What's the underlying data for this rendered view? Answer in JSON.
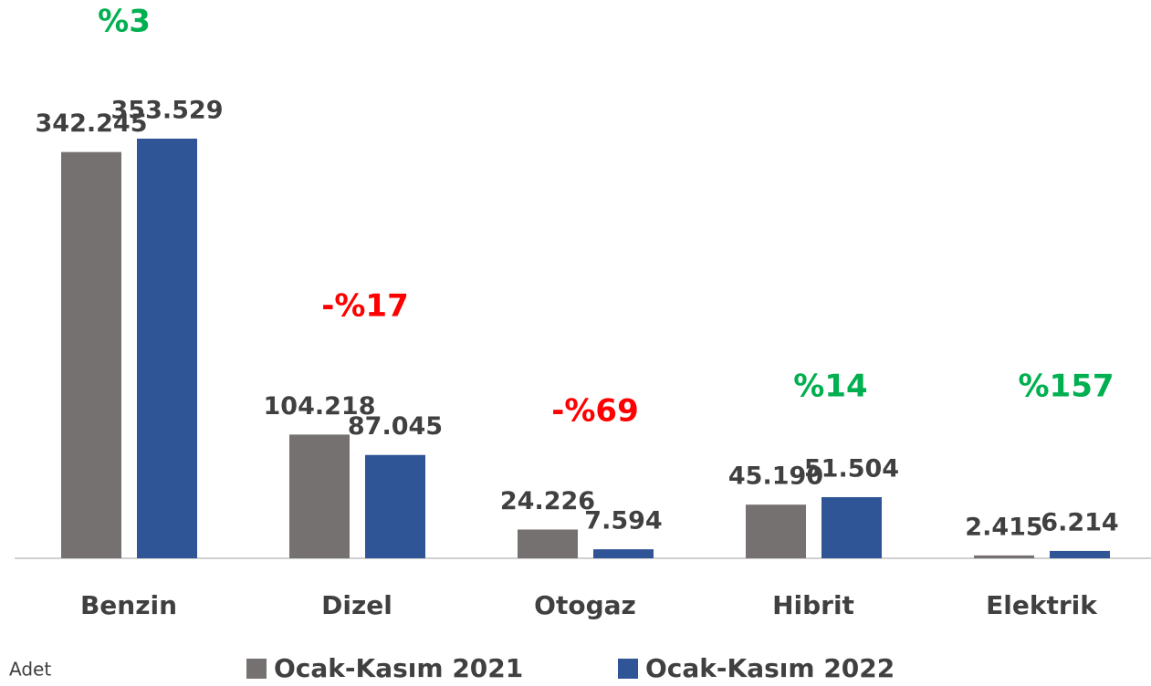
{
  "chart_data": {
    "type": "bar",
    "categories": [
      "Benzin",
      "Dizel",
      "Otogaz",
      "Hibrit",
      "Elektrik"
    ],
    "series": [
      {
        "name": "Ocak-Kasım 2021",
        "color": "#767171",
        "values": [
          342245,
          104218,
          24226,
          45190,
          2415
        ],
        "value_labels": [
          "342.245",
          "104.218",
          "24.226",
          "45.190",
          "2.415"
        ]
      },
      {
        "name": "Ocak-Kasım 2022",
        "color": "#2f5597",
        "values": [
          353529,
          87045,
          7594,
          51504,
          6214
        ],
        "value_labels": [
          "353.529",
          "87.045",
          "7.594",
          "51.504",
          "6.214"
        ]
      }
    ],
    "annotations": [
      {
        "text": "%3",
        "color": "#00b050"
      },
      {
        "text": "-%17",
        "color": "#ff0000"
      },
      {
        "text": "-%69",
        "color": "#ff0000"
      },
      {
        "text": "%14",
        "color": "#00b050"
      },
      {
        "text": "%157",
        "color": "#00b050"
      }
    ],
    "unit_label": "Adet",
    "ylim": [
      0,
      400000
    ]
  }
}
